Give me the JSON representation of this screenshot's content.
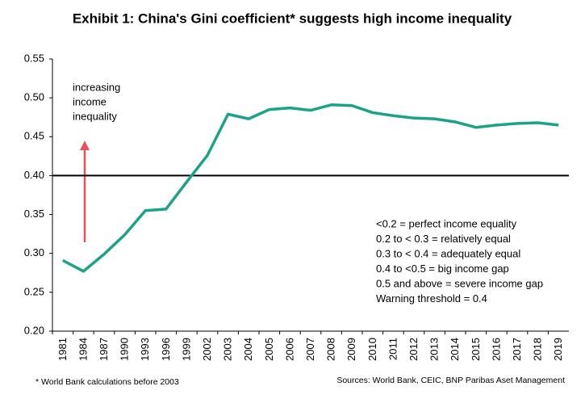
{
  "chart_data": {
    "type": "line",
    "title": "Exhibit 1: China's Gini coefficient* suggests high income inequality",
    "categories": [
      "1981",
      "1984",
      "1987",
      "1990",
      "1993",
      "1996",
      "1999",
      "2002",
      "2003",
      "2004",
      "2005",
      "2006",
      "2007",
      "2008",
      "2009",
      "2010",
      "2011",
      "2012",
      "2013",
      "2014",
      "2015",
      "2016",
      "2017",
      "2018",
      "2019"
    ],
    "series": [
      {
        "color": "#1aa386",
        "values": [
          0.291,
          0.277,
          0.299,
          0.324,
          0.355,
          0.357,
          0.392,
          0.426,
          0.479,
          0.473,
          0.485,
          0.487,
          0.484,
          0.491,
          0.49,
          0.481,
          0.477,
          0.474,
          0.473,
          0.469,
          0.462,
          0.465,
          0.467,
          0.468,
          0.465
        ]
      }
    ],
    "threshold": 0.4,
    "ylim": [
      0.2,
      0.55
    ],
    "yticks": [
      {
        "value": 0.2,
        "label": "0.20"
      },
      {
        "value": 0.25,
        "label": "0.25"
      },
      {
        "value": 0.3,
        "label": "0.30"
      },
      {
        "value": 0.35,
        "label": "0.35"
      },
      {
        "value": 0.4,
        "label": "0.40"
      },
      {
        "value": 0.45,
        "label": "0.45"
      },
      {
        "value": 0.5,
        "label": "0.50"
      },
      {
        "value": 0.55,
        "label": "0.55"
      }
    ],
    "arrow_annotation": [
      "increasing",
      "income",
      "inequality"
    ],
    "legend_notes": [
      "<0.2 = perfect income equality",
      "0.2 to < 0.3 = relatively equal",
      "0.3 to < 0.4 = adequately  equal",
      "0.4 to <0.5 = big income gap",
      "0.5 and above = severe income gap",
      "Warning threshold  = 0.4"
    ],
    "footnote": "* World Bank calculations before 2003",
    "source": "Sources: World Bank, CEIC, BNP Paribas Aset Management"
  }
}
